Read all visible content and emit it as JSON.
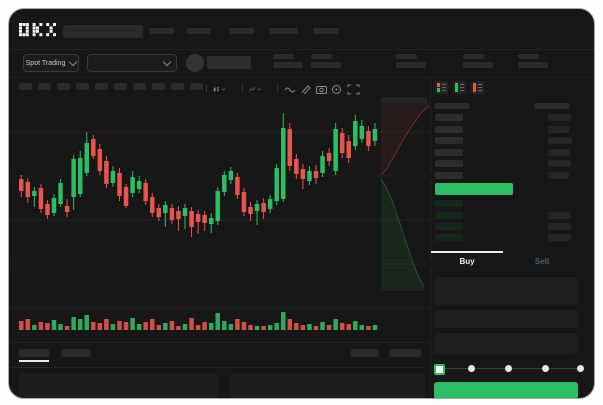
{
  "header": {
    "logo_text": "OKX",
    "market_selector_label": "Spot Trading",
    "nav_item_count": 5,
    "ticker_stat_count": 5
  },
  "toolbar": {
    "timeframe_button_count": 10,
    "icons": [
      "candle-type-icon",
      "indicators-icon",
      "line-tool-icon",
      "draw-icon",
      "camera-icon",
      "refresh-icon",
      "fullscreen-icon"
    ]
  },
  "order_book": {
    "mode_icons": [
      "book-combined-icon",
      "book-bids-only-icon",
      "book-asks-only-icon"
    ],
    "ask_row_count": 6,
    "bid_row_count": 4,
    "last_price_highlight_color": "#2DBD64"
  },
  "trade_panel": {
    "buy_tab_label": "Buy",
    "sell_tab_label": "Sell",
    "input_box_count": 3,
    "slider_step_count": 5,
    "slider_value_index": 0,
    "buy_button_color": "#2DBD64"
  },
  "bottom_panel": {
    "tab_count": 2,
    "active_tab_index": 0,
    "right_control_count": 2,
    "content_panel_count": 2
  },
  "colors": {
    "up": "#2DBD64",
    "down": "#E8544E",
    "window_bg": "#171717",
    "placeholder": "#2B2B2B",
    "text_bright": "#EAECEF",
    "text_dim": "#565D66"
  },
  "chart_data": {
    "type": "candlestick",
    "title": "",
    "xlabel": "",
    "ylabel": "",
    "note": "no axis labels visible; OHLC values are relative price units read from candle pixel positions",
    "format": "[open,high,low,close]",
    "up_color": "#2DBD64",
    "down_color": "#E8544E",
    "grid": true,
    "candles_ohlc": [
      [
        162,
        166,
        144,
        150
      ],
      [
        159,
        163,
        138,
        144
      ],
      [
        145,
        154,
        134,
        150
      ],
      [
        153,
        157,
        128,
        132
      ],
      [
        137,
        141,
        122,
        126
      ],
      [
        128,
        147,
        125,
        143
      ],
      [
        137,
        162,
        134,
        158
      ],
      [
        135,
        142,
        124,
        129
      ],
      [
        144,
        186,
        131,
        182
      ],
      [
        147,
        190,
        144,
        183
      ],
      [
        168,
        209,
        165,
        198
      ],
      [
        202,
        206,
        182,
        185
      ],
      [
        192,
        197,
        166,
        170
      ],
      [
        180,
        185,
        153,
        157
      ],
      [
        158,
        175,
        154,
        170
      ],
      [
        168,
        173,
        140,
        145
      ],
      [
        154,
        157,
        133,
        135
      ],
      [
        148,
        170,
        144,
        164
      ],
      [
        152,
        165,
        148,
        160
      ],
      [
        158,
        162,
        136,
        140
      ],
      [
        144,
        148,
        124,
        128
      ],
      [
        133,
        137,
        120,
        124
      ],
      [
        128,
        140,
        114,
        136
      ],
      [
        133,
        137,
        117,
        121
      ],
      [
        130,
        135,
        110,
        122
      ],
      [
        125,
        137,
        112,
        133
      ],
      [
        130,
        134,
        104,
        114
      ],
      [
        127,
        131,
        107,
        119
      ],
      [
        126,
        130,
        110,
        118
      ],
      [
        117,
        128,
        108,
        123
      ],
      [
        120,
        154,
        116,
        150
      ],
      [
        149,
        170,
        145,
        166
      ],
      [
        161,
        174,
        157,
        170
      ],
      [
        164,
        168,
        142,
        146
      ],
      [
        149,
        153,
        125,
        129
      ],
      [
        134,
        139,
        120,
        127
      ],
      [
        130,
        141,
        116,
        137
      ],
      [
        138,
        143,
        122,
        129
      ],
      [
        132,
        146,
        128,
        142
      ],
      [
        140,
        177,
        136,
        173
      ],
      [
        142,
        228,
        139,
        213
      ],
      [
        212,
        218,
        170,
        175
      ],
      [
        182,
        187,
        162,
        167
      ],
      [
        172,
        177,
        152,
        162
      ],
      [
        160,
        175,
        156,
        170
      ],
      [
        170,
        176,
        157,
        163
      ],
      [
        168,
        190,
        164,
        185
      ],
      [
        188,
        193,
        175,
        180
      ],
      [
        170,
        218,
        166,
        212
      ],
      [
        208,
        213,
        183,
        188
      ],
      [
        200,
        206,
        178,
        183
      ],
      [
        195,
        226,
        191,
        220
      ],
      [
        202,
        221,
        198,
        215
      ],
      [
        210,
        215,
        190,
        195
      ],
      [
        200,
        218,
        195,
        212
      ]
    ],
    "volume": [
      45,
      55,
      25,
      40,
      35,
      50,
      30,
      20,
      65,
      55,
      75,
      40,
      35,
      55,
      30,
      45,
      40,
      60,
      30,
      40,
      55,
      25,
      35,
      45,
      20,
      30,
      60,
      25,
      40,
      35,
      85,
      45,
      30,
      55,
      40,
      25,
      20,
      20,
      25,
      35,
      90,
      55,
      35,
      25,
      30,
      20,
      40,
      25,
      55,
      35,
      30,
      45,
      25,
      20,
      25
    ],
    "depth_chart": {
      "type": "area",
      "orientation": "vertical",
      "asks_color": "#E8544E",
      "bids_color": "#2DBD64"
    }
  }
}
